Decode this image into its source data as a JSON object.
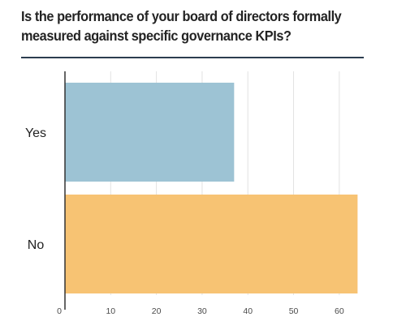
{
  "chart_data": {
    "type": "bar",
    "orientation": "horizontal",
    "title": "Is the performance of your board of directors formally measured against specific governance KPIs?",
    "categories": [
      "Yes",
      "No"
    ],
    "values": [
      37,
      64
    ],
    "colors": [
      "#9dc3d4",
      "#f7c373"
    ],
    "xlim": [
      0,
      65
    ],
    "xticks": [
      0,
      10,
      20,
      30,
      40,
      50,
      60
    ],
    "xlabel": "",
    "ylabel": "",
    "grid": true,
    "legend": "none"
  }
}
